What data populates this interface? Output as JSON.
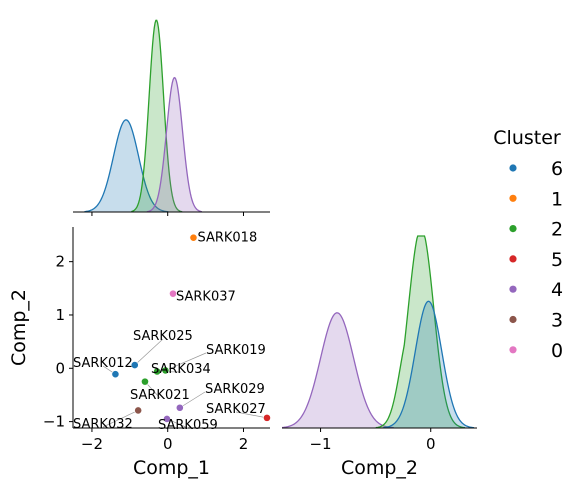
{
  "chart_data": {
    "type": "scatter",
    "plot_kind": "pairplot",
    "variables": [
      "Comp_1",
      "Comp_2"
    ],
    "xlabels": [
      "Comp_1",
      "Comp_2"
    ],
    "ylabel": "Comp_2",
    "panels": [
      "kde Comp_1",
      "scatter Comp_1 vs Comp_2",
      "kde Comp_2"
    ],
    "xlim_comp1": [
      -2.5,
      2.7
    ],
    "ylim_comp2": [
      -1.12,
      2.65
    ],
    "xlim_comp2": [
      -1.35,
      0.42
    ],
    "xticks_comp1": [
      -2,
      0,
      2
    ],
    "xtick_labels_comp1": [
      "−2",
      "0",
      "2"
    ],
    "yticks_comp2": [
      -1,
      0,
      1,
      2
    ],
    "ytick_labels_comp2": [
      "−1",
      "0",
      "1",
      "2"
    ],
    "xticks_comp2": [
      -1,
      0
    ],
    "xtick_labels_comp2": [
      "−1",
      "0"
    ],
    "legend": {
      "title": "Cluster",
      "placement": "right",
      "entries": [
        {
          "label": "6",
          "color": "#1f77b4"
        },
        {
          "label": "1",
          "color": "#ff7f0e"
        },
        {
          "label": "2",
          "color": "#2ca02c"
        },
        {
          "label": "5",
          "color": "#d62728"
        },
        {
          "label": "4",
          "color": "#9467bd"
        },
        {
          "label": "3",
          "color": "#8c564b"
        },
        {
          "label": "0",
          "color": "#e377c2"
        }
      ]
    },
    "points": [
      {
        "label": "SARK018",
        "cluster": "1",
        "x": 0.68,
        "y": 2.45
      },
      {
        "label": "SARK037",
        "cluster": "0",
        "x": 0.14,
        "y": 1.4
      },
      {
        "label": "SARK025",
        "cluster": "6",
        "x": -0.87,
        "y": 0.06
      },
      {
        "label": "SARK012",
        "cluster": "6",
        "x": -1.38,
        "y": -0.11
      },
      {
        "label": "SARK019",
        "cluster": "2",
        "x": -0.06,
        "y": -0.04
      },
      {
        "label": "SARK034",
        "cluster": "2",
        "x": -0.28,
        "y": -0.06
      },
      {
        "label": "SARK021",
        "cluster": "2",
        "x": -0.6,
        "y": -0.25
      },
      {
        "label": "SARK029",
        "cluster": "4",
        "x": 0.32,
        "y": -0.74
      },
      {
        "label": "SARK032",
        "cluster": "3",
        "x": -0.78,
        "y": -0.79
      },
      {
        "label": "SARK059",
        "cluster": "4",
        "x": -0.02,
        "y": -0.95
      },
      {
        "label": "SARK027",
        "cluster": "5",
        "x": 2.62,
        "y": -0.93
      }
    ],
    "kde_comp1": [
      {
        "cluster": "6",
        "mean": -1.1,
        "sd": 0.33,
        "amp": 0.48
      },
      {
        "cluster": "2",
        "mean": -0.3,
        "sd": 0.19,
        "amp": 1.0
      },
      {
        "cluster": "4",
        "mean": 0.18,
        "sd": 0.21,
        "amp": 0.7
      }
    ],
    "kde_comp2": [
      {
        "cluster": "4",
        "mean": -0.85,
        "sd": 0.15,
        "amp": 0.6
      },
      {
        "cluster": "2",
        "mean": -0.08,
        "sd": 0.11,
        "amp": 1.0,
        "shoulder": {
          "mean": -0.2,
          "sd": 0.09,
          "amp": 0.38
        }
      },
      {
        "cluster": "6",
        "mean": -0.02,
        "sd": 0.12,
        "amp": 0.66
      }
    ]
  }
}
